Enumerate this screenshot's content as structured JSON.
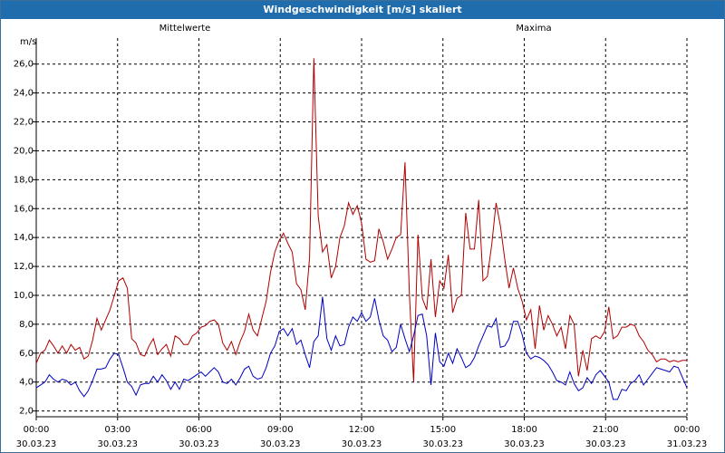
{
  "window": {
    "title": "Windgeschwindigkeit [m/s] skaliert"
  },
  "colors": {
    "mean": "#0000c0",
    "max": "#b00000",
    "grid": "#000000",
    "titlebar": "#1f6dad"
  },
  "chart_data": {
    "type": "line",
    "title": "Windgeschwindigkeit [m/s] skaliert",
    "ylabel": "m/s",
    "xlabel": "",
    "grid": true,
    "xlim": [
      "30.03.23 00:00",
      "31.03.23 00:00"
    ],
    "ylim": [
      1.6,
      27.8
    ],
    "yticks": [
      "2,0",
      "4,0",
      "6,0",
      "8,0",
      "10,0",
      "12,0",
      "14,0",
      "16,0",
      "18,0",
      "20,0",
      "22,0",
      "24,0",
      "26,0"
    ],
    "xticks": [
      {
        "time": "00:00",
        "date": "30.03.23"
      },
      {
        "time": "03:00",
        "date": "30.03.23"
      },
      {
        "time": "06:00",
        "date": "30.03.23"
      },
      {
        "time": "09:00",
        "date": "30.03.23"
      },
      {
        "time": "12:00",
        "date": "30.03.23"
      },
      {
        "time": "15:00",
        "date": "30.03.23"
      },
      {
        "time": "18:00",
        "date": "30.03.23"
      },
      {
        "time": "21:00",
        "date": "30.03.23"
      },
      {
        "time": "00:00",
        "date": "31.03.23"
      }
    ],
    "x_unit": "hours since 30.03.23 00:00",
    "series": [
      {
        "name": "Mittelwerte",
        "color": "#0000c0",
        "points": [
          [
            0,
            3.6
          ],
          [
            0.25,
            3.8
          ],
          [
            0.5,
            4.0
          ],
          [
            0.75,
            4.5
          ],
          [
            1.0,
            4.2
          ],
          [
            1.25,
            4.0
          ],
          [
            1.5,
            4.2
          ],
          [
            1.75,
            4.1
          ],
          [
            2.0,
            3.8
          ],
          [
            2.25,
            4.0
          ],
          [
            2.5,
            3.4
          ],
          [
            2.75,
            3.0
          ],
          [
            3.0,
            3.4
          ],
          [
            3.25,
            4.1
          ],
          [
            3.5,
            4.9
          ],
          [
            3.75,
            4.9
          ],
          [
            4.0,
            5.0
          ],
          [
            4.25,
            5.6
          ],
          [
            4.5,
            6.0
          ],
          [
            4.75,
            5.9
          ],
          [
            5.0,
            5.0
          ],
          [
            5.25,
            4.0
          ],
          [
            5.5,
            3.7
          ],
          [
            5.75,
            3.1
          ],
          [
            6.0,
            3.8
          ],
          [
            6.25,
            3.9
          ],
          [
            6.5,
            3.9
          ],
          [
            6.75,
            4.4
          ],
          [
            7.0,
            4.0
          ],
          [
            7.25,
            4.5
          ],
          [
            7.5,
            4.1
          ],
          [
            7.75,
            3.5
          ],
          [
            8.0,
            4.0
          ],
          [
            8.25,
            3.5
          ],
          [
            8.5,
            4.2
          ],
          [
            8.75,
            4.1
          ],
          [
            9.0,
            4.3
          ],
          [
            9.25,
            4.5
          ],
          [
            9.5,
            4.7
          ],
          [
            9.75,
            4.4
          ],
          [
            10.0,
            4.7
          ],
          [
            10.25,
            5.0
          ],
          [
            10.5,
            4.7
          ],
          [
            10.75,
            4.0
          ],
          [
            11.0,
            3.9
          ],
          [
            11.25,
            4.2
          ],
          [
            11.5,
            3.8
          ],
          [
            11.75,
            4.3
          ],
          [
            12.0,
            4.9
          ],
          [
            12.25,
            5.1
          ],
          [
            12.5,
            4.4
          ],
          [
            12.75,
            4.2
          ],
          [
            13.0,
            4.3
          ],
          [
            13.25,
            5.0
          ],
          [
            13.5,
            6.0
          ],
          [
            13.75,
            6.5
          ],
          [
            14.0,
            7.5
          ],
          [
            14.25,
            7.7
          ],
          [
            14.5,
            7.2
          ],
          [
            14.75,
            7.7
          ],
          [
            15.0,
            6.6
          ],
          [
            15.25,
            6.9
          ],
          [
            15.5,
            5.9
          ],
          [
            15.75,
            5.0
          ],
          [
            16.0,
            6.8
          ],
          [
            16.25,
            7.2
          ],
          [
            16.5,
            9.9
          ],
          [
            16.75,
            7.0
          ],
          [
            17.0,
            6.2
          ],
          [
            17.25,
            7.2
          ],
          [
            17.5,
            6.5
          ],
          [
            17.75,
            6.6
          ],
          [
            18.0,
            7.8
          ],
          [
            18.25,
            8.5
          ],
          [
            18.5,
            8.2
          ],
          [
            18.75,
            8.8
          ],
          [
            19.0,
            8.2
          ],
          [
            19.25,
            8.5
          ],
          [
            19.5,
            9.8
          ],
          [
            19.75,
            8.3
          ],
          [
            20.0,
            7.2
          ],
          [
            20.25,
            6.9
          ],
          [
            20.5,
            6.1
          ],
          [
            20.75,
            6.4
          ],
          [
            21.0,
            8.0
          ],
          [
            21.25,
            7.0
          ],
          [
            21.5,
            6.1
          ],
          [
            21.75,
            7.2
          ],
          [
            22.0,
            8.6
          ],
          [
            22.25,
            8.7
          ],
          [
            22.5,
            7.2
          ],
          [
            22.75,
            3.8
          ],
          [
            23.0,
            7.4
          ],
          [
            23.25,
            5.4
          ],
          [
            23.5,
            5.1
          ],
          [
            23.75,
            6.0
          ],
          [
            24.0,
            5.3
          ],
          [
            24.25,
            6.3
          ],
          [
            24.5,
            5.7
          ],
          [
            24.75,
            5.0
          ],
          [
            25.0,
            5.2
          ],
          [
            25.25,
            5.7
          ],
          [
            25.5,
            6.5
          ],
          [
            25.75,
            7.2
          ],
          [
            26.0,
            7.9
          ],
          [
            26.25,
            7.8
          ],
          [
            26.5,
            8.4
          ],
          [
            26.75,
            6.4
          ],
          [
            27.0,
            6.5
          ],
          [
            27.25,
            7.0
          ],
          [
            27.5,
            8.2
          ],
          [
            27.75,
            8.2
          ],
          [
            28.0,
            7.3
          ],
          [
            28.25,
            6.0
          ],
          [
            28.5,
            5.6
          ],
          [
            28.75,
            5.8
          ],
          [
            29.0,
            5.7
          ],
          [
            29.25,
            5.5
          ],
          [
            29.5,
            5.2
          ],
          [
            29.75,
            4.7
          ],
          [
            30.0,
            4.1
          ],
          [
            30.25,
            4.0
          ],
          [
            30.5,
            3.8
          ],
          [
            30.75,
            4.7
          ],
          [
            31.0,
            3.9
          ],
          [
            31.25,
            3.4
          ],
          [
            31.5,
            3.6
          ],
          [
            31.75,
            4.3
          ],
          [
            32.0,
            3.9
          ],
          [
            32.25,
            4.5
          ],
          [
            32.5,
            4.8
          ],
          [
            32.75,
            4.4
          ],
          [
            33.0,
            4.0
          ],
          [
            33.25,
            2.8
          ],
          [
            33.5,
            2.8
          ],
          [
            33.75,
            3.5
          ],
          [
            34.0,
            3.4
          ],
          [
            34.25,
            3.9
          ],
          [
            34.5,
            4.1
          ],
          [
            34.75,
            4.5
          ],
          [
            35.0,
            3.8
          ],
          [
            35.25,
            4.2
          ],
          [
            35.5,
            4.6
          ],
          [
            35.75,
            5.0
          ],
          [
            36.0,
            4.9
          ],
          [
            36.25,
            4.8
          ],
          [
            36.5,
            4.7
          ],
          [
            36.75,
            5.1
          ],
          [
            37.0,
            5.0
          ],
          [
            37.25,
            4.3
          ],
          [
            37.5,
            3.6
          ]
        ]
      },
      {
        "name": "Maxima",
        "color": "#b00000",
        "points": [
          [
            0,
            5.3
          ],
          [
            0.25,
            6.0
          ],
          [
            0.5,
            6.2
          ],
          [
            0.75,
            6.9
          ],
          [
            1.0,
            6.5
          ],
          [
            1.25,
            6.0
          ],
          [
            1.5,
            6.5
          ],
          [
            1.75,
            6.0
          ],
          [
            2.0,
            6.6
          ],
          [
            2.25,
            6.2
          ],
          [
            2.5,
            6.4
          ],
          [
            2.75,
            5.6
          ],
          [
            3.0,
            5.8
          ],
          [
            3.25,
            6.9
          ],
          [
            3.5,
            8.4
          ],
          [
            3.75,
            7.6
          ],
          [
            4.0,
            8.3
          ],
          [
            4.25,
            9.0
          ],
          [
            4.5,
            10.0
          ],
          [
            4.75,
            11.0
          ],
          [
            5.0,
            11.2
          ],
          [
            5.25,
            10.5
          ],
          [
            5.5,
            7.0
          ],
          [
            5.75,
            6.7
          ],
          [
            6.0,
            5.9
          ],
          [
            6.25,
            5.8
          ],
          [
            6.5,
            6.5
          ],
          [
            6.75,
            7.0
          ],
          [
            7.0,
            5.9
          ],
          [
            7.25,
            6.3
          ],
          [
            7.5,
            6.6
          ],
          [
            7.75,
            5.8
          ],
          [
            8.0,
            7.2
          ],
          [
            8.25,
            7.0
          ],
          [
            8.5,
            6.6
          ],
          [
            8.75,
            6.6
          ],
          [
            9.0,
            7.2
          ],
          [
            9.25,
            7.4
          ],
          [
            9.5,
            7.8
          ],
          [
            9.75,
            7.9
          ],
          [
            10.0,
            8.2
          ],
          [
            10.25,
            8.3
          ],
          [
            10.5,
            8.0
          ],
          [
            10.75,
            6.7
          ],
          [
            11.0,
            6.2
          ],
          [
            11.25,
            6.8
          ],
          [
            11.5,
            5.9
          ],
          [
            11.75,
            6.8
          ],
          [
            12.0,
            7.5
          ],
          [
            12.25,
            8.7
          ],
          [
            12.5,
            7.6
          ],
          [
            12.75,
            7.2
          ],
          [
            13.0,
            8.4
          ],
          [
            13.25,
            9.6
          ],
          [
            13.5,
            11.6
          ],
          [
            13.75,
            13.0
          ],
          [
            14.0,
            13.8
          ],
          [
            14.25,
            14.3
          ],
          [
            14.5,
            13.6
          ],
          [
            14.75,
            13.0
          ],
          [
            15.0,
            10.8
          ],
          [
            15.25,
            10.4
          ],
          [
            15.5,
            9.0
          ],
          [
            15.75,
            12.6
          ],
          [
            16.0,
            26.4
          ],
          [
            16.25,
            15.5
          ],
          [
            16.5,
            13.0
          ],
          [
            16.75,
            13.5
          ],
          [
            17.0,
            11.2
          ],
          [
            17.25,
            12.0
          ],
          [
            17.5,
            14.0
          ],
          [
            17.75,
            14.8
          ],
          [
            18.0,
            16.4
          ],
          [
            18.25,
            15.6
          ],
          [
            18.5,
            16.2
          ],
          [
            18.75,
            15.0
          ],
          [
            19.0,
            12.5
          ],
          [
            19.25,
            12.3
          ],
          [
            19.5,
            12.4
          ],
          [
            19.75,
            14.6
          ],
          [
            20.0,
            13.7
          ],
          [
            20.25,
            12.5
          ],
          [
            20.5,
            13.2
          ],
          [
            20.75,
            14.0
          ],
          [
            21.0,
            14.2
          ],
          [
            21.25,
            19.2
          ],
          [
            21.5,
            10.2
          ],
          [
            21.75,
            4.0
          ],
          [
            22.0,
            14.2
          ],
          [
            22.25,
            9.8
          ],
          [
            22.5,
            9.0
          ],
          [
            22.75,
            12.5
          ],
          [
            23.0,
            8.5
          ],
          [
            23.25,
            11.0
          ],
          [
            23.5,
            10.5
          ],
          [
            23.75,
            12.8
          ],
          [
            24.0,
            8.8
          ],
          [
            24.25,
            9.8
          ],
          [
            24.5,
            10.0
          ],
          [
            24.75,
            15.7
          ],
          [
            25.0,
            13.2
          ],
          [
            25.25,
            13.2
          ],
          [
            25.5,
            16.6
          ],
          [
            25.75,
            11.0
          ],
          [
            26.0,
            11.3
          ],
          [
            26.25,
            13.5
          ],
          [
            26.5,
            16.4
          ],
          [
            26.75,
            14.8
          ],
          [
            27.0,
            12.5
          ],
          [
            27.25,
            10.5
          ],
          [
            27.5,
            11.9
          ],
          [
            27.75,
            10.5
          ],
          [
            28.0,
            9.6
          ],
          [
            28.25,
            8.3
          ],
          [
            28.5,
            9.0
          ],
          [
            28.75,
            6.3
          ],
          [
            29.0,
            9.3
          ],
          [
            29.25,
            7.6
          ],
          [
            29.5,
            8.6
          ],
          [
            29.75,
            8.0
          ],
          [
            30.0,
            7.2
          ],
          [
            30.25,
            7.8
          ],
          [
            30.5,
            6.3
          ],
          [
            30.75,
            8.6
          ],
          [
            31.0,
            8.0
          ],
          [
            31.25,
            4.4
          ],
          [
            31.5,
            6.2
          ],
          [
            31.75,
            4.8
          ],
          [
            32.0,
            7.0
          ],
          [
            32.25,
            7.2
          ],
          [
            32.5,
            7.0
          ],
          [
            32.75,
            7.5
          ],
          [
            33.0,
            9.2
          ],
          [
            33.25,
            7.0
          ],
          [
            33.5,
            7.2
          ],
          [
            33.75,
            7.8
          ],
          [
            34.0,
            7.8
          ],
          [
            34.25,
            8.0
          ],
          [
            34.5,
            7.9
          ],
          [
            34.75,
            7.2
          ],
          [
            35.0,
            6.8
          ],
          [
            35.25,
            6.2
          ],
          [
            35.5,
            5.9
          ],
          [
            35.75,
            5.4
          ],
          [
            36.0,
            5.6
          ],
          [
            36.25,
            5.6
          ],
          [
            36.5,
            5.4
          ],
          [
            36.75,
            5.5
          ],
          [
            37.0,
            5.4
          ],
          [
            37.25,
            5.5
          ],
          [
            37.5,
            5.5
          ]
        ]
      }
    ]
  }
}
